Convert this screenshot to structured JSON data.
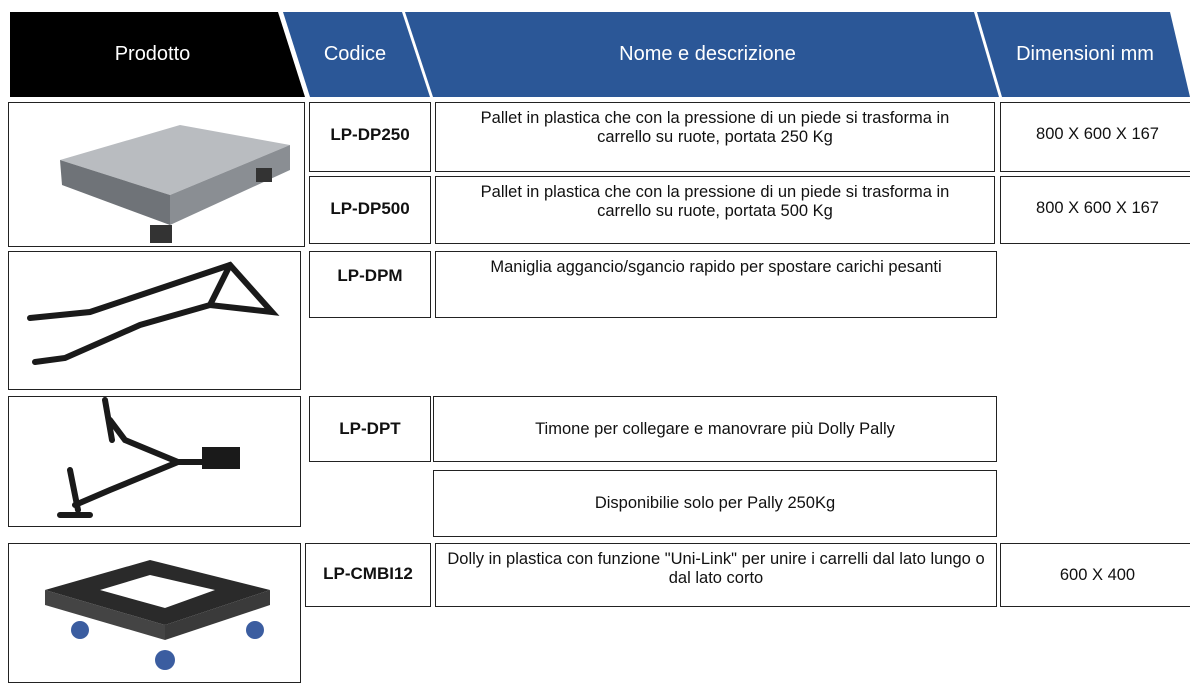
{
  "table": {
    "columns": [
      "Prodotto",
      "Codice",
      "Nome e descrizione",
      "Dimensioni mm"
    ],
    "rows": [
      {
        "code": "LP-DP250",
        "description": "Pallet in plastica che con la pressione di un piede si trasforma in carrello su ruote, portata 250 Kg",
        "dimensions": "800 X 600 X 167"
      },
      {
        "code": "LP-DP500",
        "description": "Pallet in plastica che con la pressione di un piede si trasforma in carrello su ruote, portata 500 Kg",
        "dimensions": "800 X 600 X 167"
      },
      {
        "code": "LP-DPM",
        "description": "Maniglia aggancio/sgancio rapido per spostare carichi pesanti"
      },
      {
        "code": "LP-DPT",
        "description": "Timone per collegare e manovrare più Dolly Pally",
        "note": "Disponibilie solo per Pally 250Kg"
      },
      {
        "code": "LP-CMBI12",
        "description": "Dolly in plastica con funzione \"Uni-Link\" per unire i carrelli dal lato lungo o dal lato corto",
        "dimensions": "600 X 400"
      }
    ]
  }
}
